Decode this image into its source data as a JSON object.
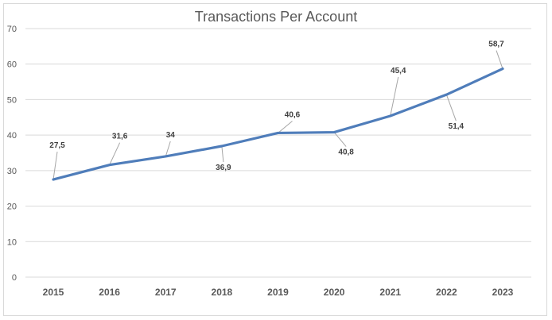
{
  "chart_data": {
    "type": "line",
    "title": "Transactions Per Account",
    "xlabel": "",
    "ylabel": "",
    "categories": [
      "2015",
      "2016",
      "2017",
      "2018",
      "2019",
      "2020",
      "2021",
      "2022",
      "2023"
    ],
    "series": [
      {
        "values": [
          27.5,
          31.6,
          34,
          36.9,
          40.6,
          40.8,
          45.4,
          51.4,
          58.7
        ],
        "data_labels": [
          "27,5",
          "31,6",
          "34",
          "36,9",
          "40,6",
          "40,8",
          "45,4",
          "51,4",
          "58,7"
        ],
        "color": "#4f7dba"
      }
    ],
    "ylim": [
      0,
      70
    ],
    "yticks": [
      "0",
      "10",
      "20",
      "30",
      "40",
      "50",
      "60",
      "70"
    ],
    "grid": true,
    "legend": "none"
  }
}
